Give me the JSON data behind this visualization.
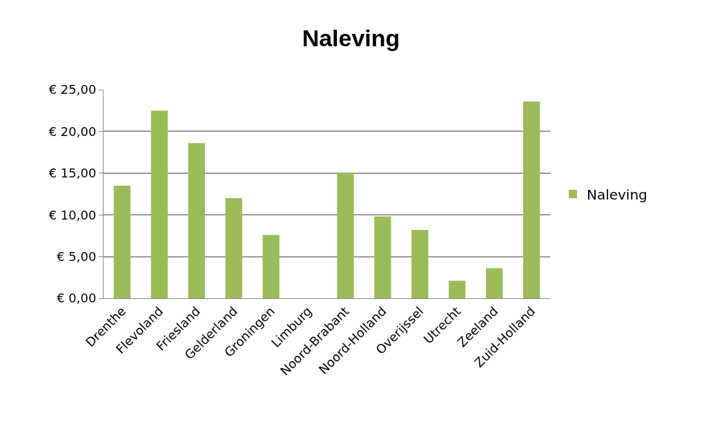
{
  "chart_data": {
    "type": "bar",
    "title": "Naleving",
    "categories": [
      "Drenthe",
      "Flevoland",
      "Friesland",
      "Gelderland",
      "Groningen",
      "Limburg",
      "Noord-Brabant",
      "Noord-Holland",
      "Overijssel",
      "Utrecht",
      "Zeeland",
      "Zuid-Holland"
    ],
    "series": [
      {
        "name": "Naleving",
        "color": "#9bbb59",
        "values": [
          13.5,
          22.5,
          18.6,
          12.0,
          7.6,
          0,
          15.0,
          9.8,
          8.2,
          2.1,
          3.6,
          23.6
        ]
      }
    ],
    "ylim": [
      0,
      25
    ],
    "yticks": [
      {
        "value": 0,
        "label": "€ 0,00"
      },
      {
        "value": 5,
        "label": "€ 5,00"
      },
      {
        "value": 10,
        "label": "€ 10,00"
      },
      {
        "value": 15,
        "label": "€ 15,00"
      },
      {
        "value": 20,
        "label": "€ 20,00"
      },
      {
        "value": 25,
        "label": "€ 25,00"
      }
    ],
    "grid": "y",
    "legend": "right"
  }
}
